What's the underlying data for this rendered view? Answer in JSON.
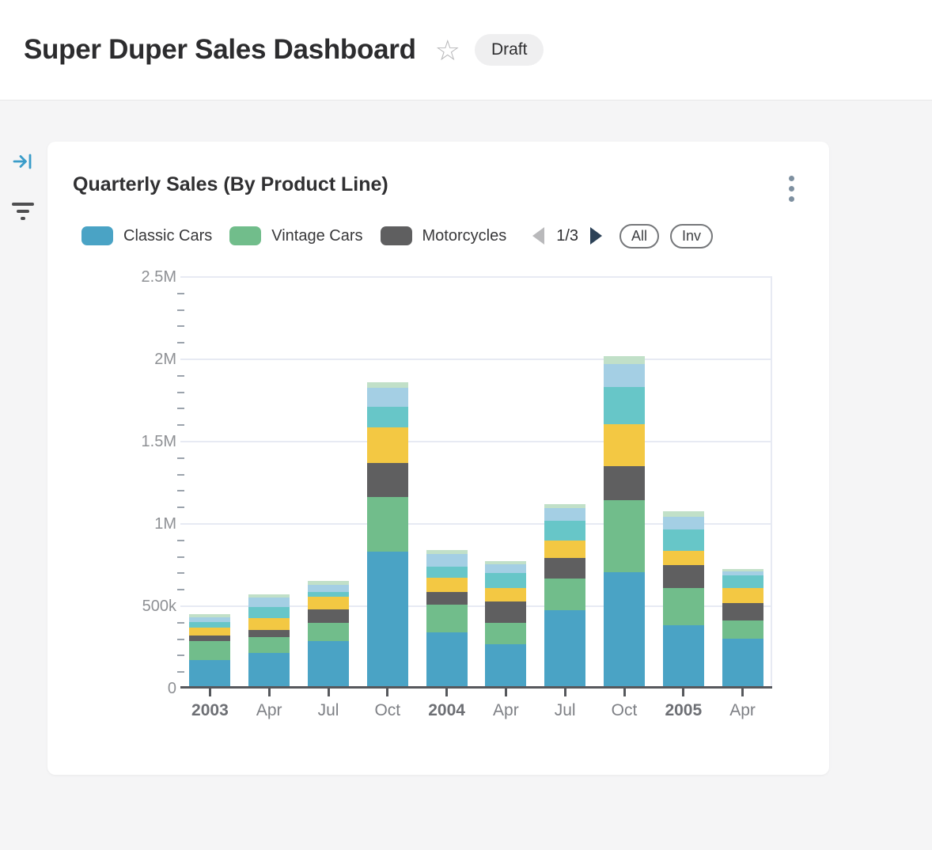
{
  "header": {
    "title": "Super Duper Sales Dashboard",
    "status_badge": "Draft",
    "favorite_icon": "star-outline-icon"
  },
  "side_panel": {
    "icons": [
      "expand-panel-icon",
      "filter-icon"
    ],
    "accent_color": "#3a9cc9",
    "filter_icon_color": "#4e4e50"
  },
  "card": {
    "title": "Quarterly Sales (By Product Line)",
    "menu_icon": "kebab-menu-icon",
    "legend": {
      "page": "1/3",
      "prev_icon": "triangle-left-icon",
      "next_icon": "triangle-right-icon",
      "all_label": "All",
      "inv_label": "Inv"
    }
  },
  "chart_data": {
    "type": "bar",
    "stacked": true,
    "title": "Quarterly Sales (By Product Line)",
    "categories": [
      "2003",
      "Apr",
      "Jul",
      "Oct",
      "2004",
      "Apr",
      "Jul",
      "Oct",
      "2005",
      "Apr"
    ],
    "category_bold": [
      true,
      false,
      false,
      false,
      true,
      false,
      false,
      false,
      true,
      false
    ],
    "series": [
      {
        "name": "Classic Cars",
        "legend_visible": true,
        "color": "#4aa3c5",
        "values": [
          165000,
          206000,
          281000,
          822000,
          334000,
          258000,
          466000,
          695000,
          377000,
          294000
        ]
      },
      {
        "name": "Vintage Cars",
        "legend_visible": true,
        "color": "#71bd8b",
        "values": [
          112000,
          96000,
          109000,
          333000,
          164000,
          132000,
          194000,
          442000,
          225000,
          112000
        ]
      },
      {
        "name": "Motorcycles",
        "legend_visible": true,
        "color": "#5f5f60",
        "values": [
          35000,
          43000,
          80000,
          204000,
          77000,
          128000,
          124000,
          204000,
          138000,
          104000
        ]
      },
      {
        "name": "series-4-yellow",
        "legend_visible": false,
        "color": "#f3c843",
        "values": [
          48000,
          72000,
          80000,
          216000,
          88000,
          83000,
          104000,
          257000,
          87000,
          92000
        ]
      },
      {
        "name": "series-5-teal",
        "legend_visible": false,
        "color": "#67c6c8",
        "values": [
          32000,
          69000,
          27000,
          125000,
          67000,
          93000,
          120000,
          225000,
          129000,
          74000
        ]
      },
      {
        "name": "series-6-lightblue",
        "legend_visible": false,
        "color": "#a4cfe4",
        "values": [
          32000,
          56000,
          45000,
          119000,
          80000,
          53000,
          80000,
          138000,
          80000,
          27000
        ]
      },
      {
        "name": "series-7-lightgreen",
        "legend_visible": false,
        "color": "#c1e0c8",
        "values": [
          16000,
          19000,
          24000,
          32000,
          21000,
          19000,
          21000,
          51000,
          34000,
          16000
        ]
      }
    ],
    "xlabel": "",
    "ylabel": "",
    "ylim": [
      0,
      2500000
    ],
    "ytick_interval": 500000,
    "ytick_labels": [
      "0",
      "500k",
      "1M",
      "1.5M",
      "2M",
      "2.5M"
    ],
    "minor_tick_interval": 100000,
    "grid": "horizontal",
    "legend_position": "top"
  }
}
